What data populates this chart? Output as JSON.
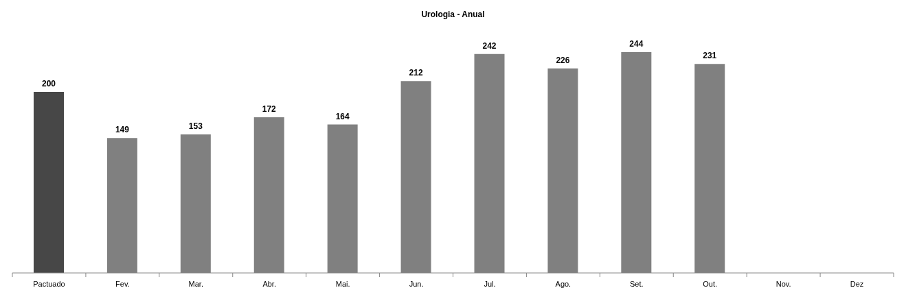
{
  "chart_data": {
    "type": "bar",
    "title": "Urologia - Anual",
    "categories": [
      "Pactuado",
      "Fev.",
      "Mar.",
      "Abr.",
      "Mai.",
      "Jun.",
      "Jul.",
      "Ago.",
      "Set.",
      "Out.",
      "Nov.",
      "Dez"
    ],
    "values": [
      200,
      149,
      153,
      172,
      164,
      212,
      242,
      226,
      244,
      231,
      null,
      null
    ],
    "colors": [
      "#474747",
      "#808080",
      "#808080",
      "#808080",
      "#808080",
      "#808080",
      "#808080",
      "#808080",
      "#808080",
      "#808080",
      "#808080",
      "#808080"
    ],
    "data_labels": true,
    "grid": false,
    "legend": false
  }
}
